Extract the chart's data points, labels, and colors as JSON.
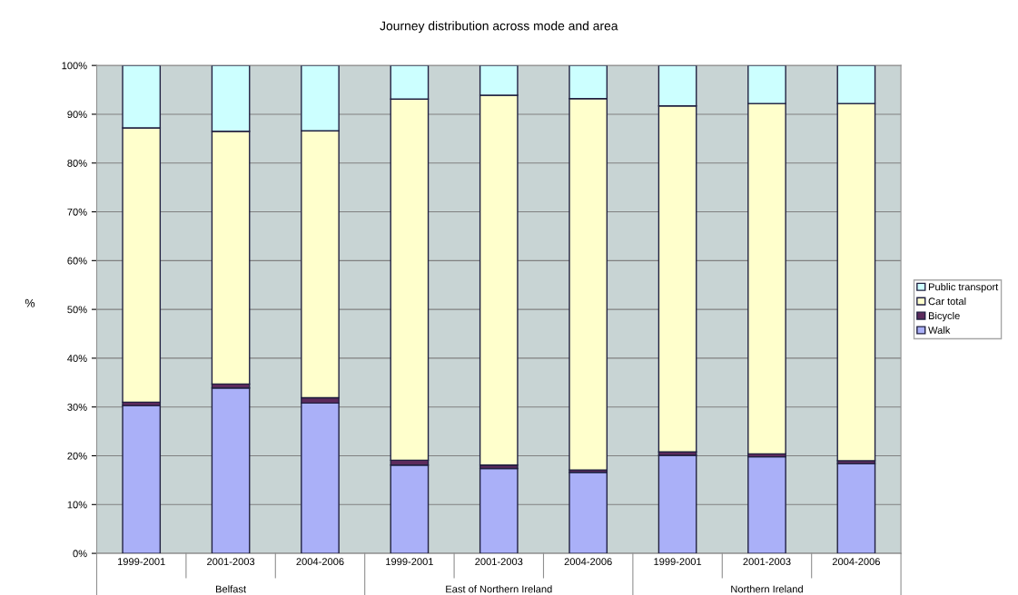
{
  "chart_data": {
    "type": "bar",
    "title": "Journey distribution across mode and area",
    "ylabel": "%",
    "stacked": true,
    "categories": [
      "1999-2001",
      "2001-2003",
      "2004-2006",
      "1999-2001",
      "2001-2003",
      "2004-2006",
      "1999-2001",
      "2001-2003",
      "2004-2006"
    ],
    "annotations": [
      "Belfast",
      "East of Northern Ireland",
      "Northern Ireland"
    ],
    "series": [
      {
        "name": "Walk",
        "color": "#aab0f8",
        "values": [
          30.3,
          33.9,
          30.8,
          18.1,
          17.4,
          16.6,
          20.1,
          19.8,
          18.4
        ]
      },
      {
        "name": "Bicycle",
        "color": "#5c2a5c",
        "values": [
          0.7,
          0.8,
          1.1,
          1.0,
          0.7,
          0.5,
          0.7,
          0.6,
          0.6
        ]
      },
      {
        "name": "Car total",
        "color": "#ffffcc",
        "values": [
          56.2,
          51.8,
          54.7,
          74.0,
          75.8,
          76.1,
          70.9,
          71.8,
          73.2
        ]
      },
      {
        "name": "Public transport",
        "color": "#ccffff",
        "values": [
          12.8,
          13.5,
          13.4,
          6.9,
          6.1,
          6.8,
          8.3,
          7.8,
          7.8
        ]
      }
    ],
    "ylim": [
      0,
      100
    ],
    "yticks": [
      {
        "value": 0,
        "label": "0%"
      },
      {
        "value": 10,
        "label": "10%"
      },
      {
        "value": 20,
        "label": "20%"
      },
      {
        "value": 30,
        "label": "30%"
      },
      {
        "value": 40,
        "label": "40%"
      },
      {
        "value": 50,
        "label": "50%"
      },
      {
        "value": 60,
        "label": "60%"
      },
      {
        "value": 70,
        "label": "70%"
      },
      {
        "value": 80,
        "label": "80%"
      },
      {
        "value": 90,
        "label": "90%"
      },
      {
        "value": 100,
        "label": "100%"
      }
    ],
    "grid": "y",
    "legend": "right"
  }
}
